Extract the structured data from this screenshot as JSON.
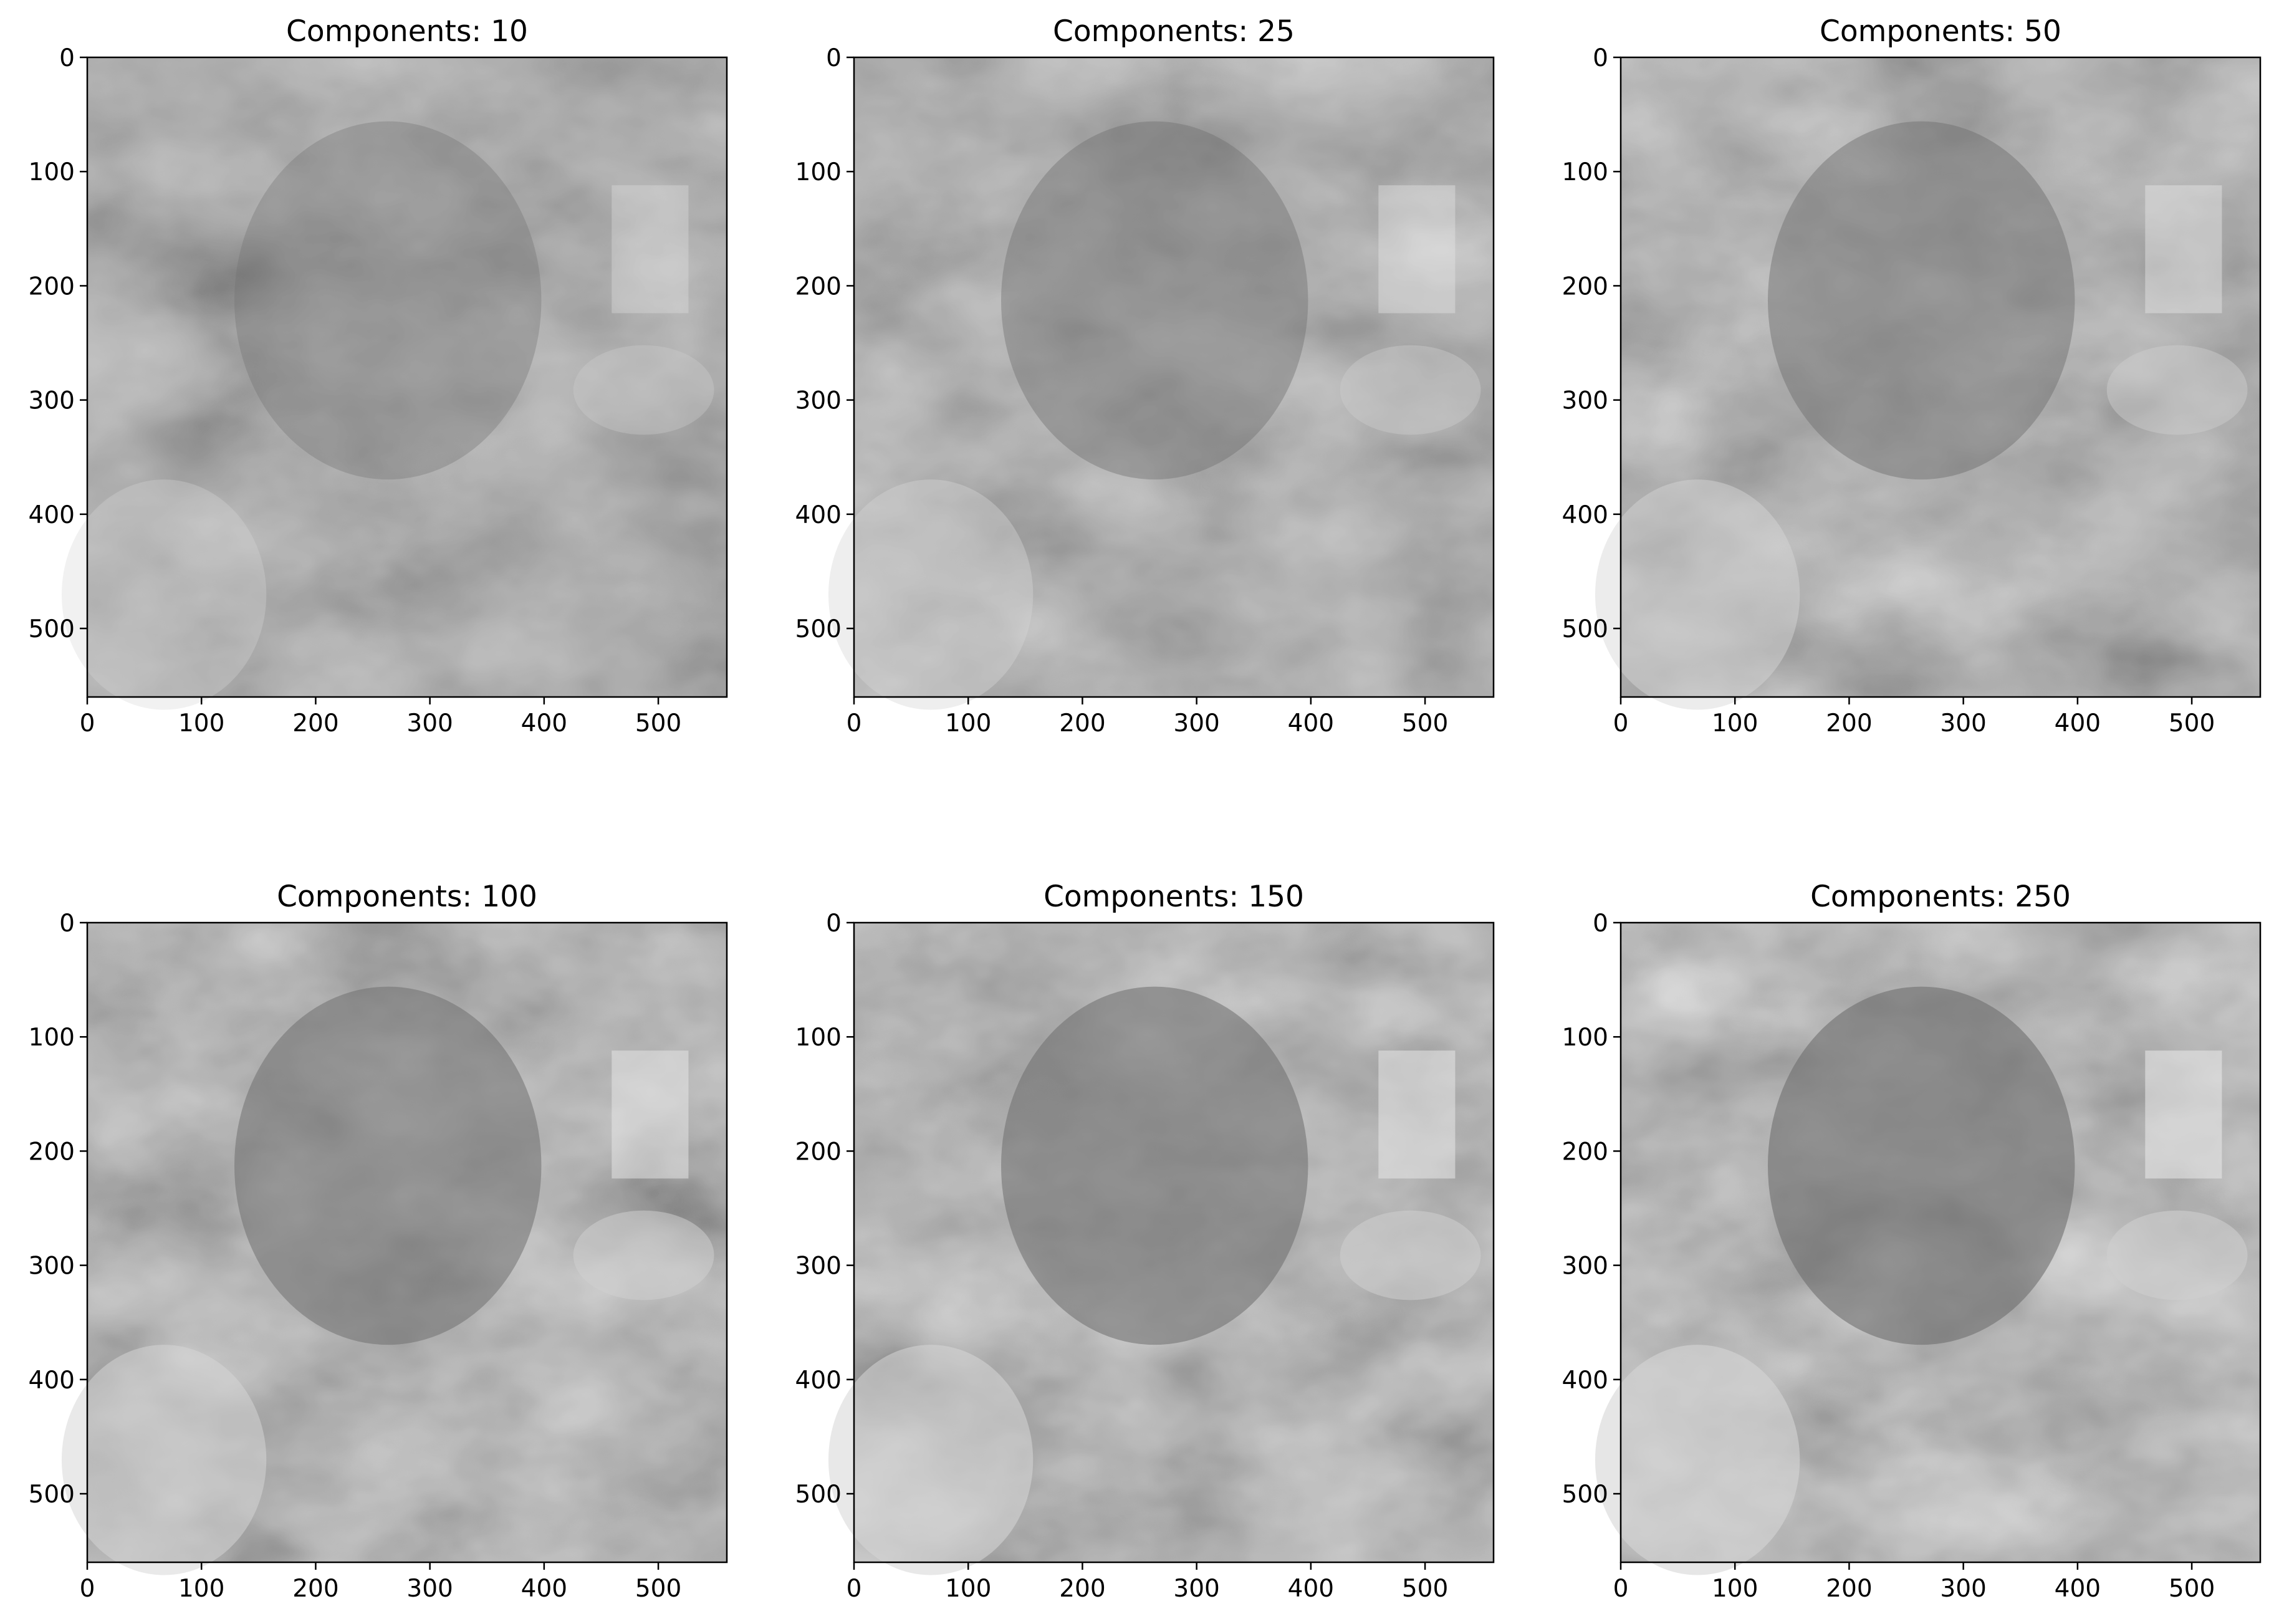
{
  "chart_data": [
    {
      "type": "image",
      "title": "Components: 10",
      "components": 10,
      "xlim": [
        0,
        560
      ],
      "ylim": [
        560,
        0
      ],
      "xticks": [
        0,
        100,
        200,
        300,
        400,
        500
      ],
      "yticks": [
        0,
        100,
        200,
        300,
        400,
        500
      ],
      "colormap": "gray"
    },
    {
      "type": "image",
      "title": "Components: 25",
      "components": 25,
      "xlim": [
        0,
        560
      ],
      "ylim": [
        560,
        0
      ],
      "xticks": [
        0,
        100,
        200,
        300,
        400,
        500
      ],
      "yticks": [
        0,
        100,
        200,
        300,
        400,
        500
      ],
      "colormap": "gray"
    },
    {
      "type": "image",
      "title": "Components: 50",
      "components": 50,
      "xlim": [
        0,
        560
      ],
      "ylim": [
        560,
        0
      ],
      "xticks": [
        0,
        100,
        200,
        300,
        400,
        500
      ],
      "yticks": [
        0,
        100,
        200,
        300,
        400,
        500
      ],
      "colormap": "gray"
    },
    {
      "type": "image",
      "title": "Components: 100",
      "components": 100,
      "xlim": [
        0,
        560
      ],
      "ylim": [
        560,
        0
      ],
      "xticks": [
        0,
        100,
        200,
        300,
        400,
        500
      ],
      "yticks": [
        0,
        100,
        200,
        300,
        400,
        500
      ],
      "colormap": "gray"
    },
    {
      "type": "image",
      "title": "Components: 150",
      "components": 150,
      "xlim": [
        0,
        560
      ],
      "ylim": [
        560,
        0
      ],
      "xticks": [
        0,
        100,
        200,
        300,
        400,
        500
      ],
      "yticks": [
        0,
        100,
        200,
        300,
        400,
        500
      ],
      "colormap": "gray"
    },
    {
      "type": "image",
      "title": "Components: 250",
      "components": 250,
      "xlim": [
        0,
        560
      ],
      "ylim": [
        560,
        0
      ],
      "xticks": [
        0,
        100,
        200,
        300,
        400,
        500
      ],
      "yticks": [
        0,
        100,
        200,
        300,
        400,
        500
      ],
      "colormap": "gray"
    }
  ]
}
